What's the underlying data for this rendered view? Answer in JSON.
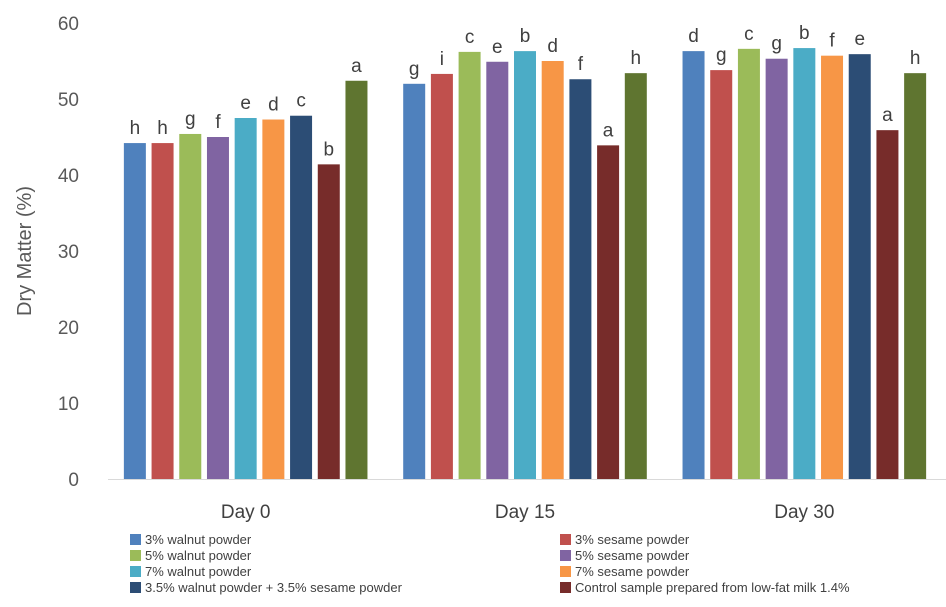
{
  "chart_data": {
    "type": "bar",
    "title": "",
    "xlabel": "",
    "ylabel": "Dry Matter (%)",
    "ylim": [
      0,
      60
    ],
    "yticks": [
      0,
      10,
      20,
      30,
      40,
      50,
      60
    ],
    "grid": false,
    "legend_position": "bottom",
    "categories": [
      "Day 0",
      "Day 15",
      "Day 30"
    ],
    "series": [
      {
        "name": "3% walnut powder",
        "color": "#4F81BD",
        "values": [
          44.2,
          52.0,
          56.3
        ],
        "labels": [
          "h",
          "g",
          "d"
        ]
      },
      {
        "name": "3% sesame powder",
        "color": "#C0504D",
        "values": [
          44.2,
          53.3,
          53.8
        ],
        "labels": [
          "h",
          "i",
          "g"
        ]
      },
      {
        "name": "5% walnut powder",
        "color": "#9BBB59",
        "values": [
          45.4,
          56.2,
          56.6
        ],
        "labels": [
          "g",
          "c",
          "c"
        ]
      },
      {
        "name": "5% sesame powder",
        "color": "#8064A2",
        "values": [
          45.0,
          54.9,
          55.3
        ],
        "labels": [
          "f",
          "e",
          "g"
        ]
      },
      {
        "name": "7% walnut powder",
        "color": "#4BACC6",
        "values": [
          47.5,
          56.3,
          56.7
        ],
        "labels": [
          "e",
          "b",
          "b"
        ]
      },
      {
        "name": "7% sesame powder",
        "color": "#F79646",
        "values": [
          47.3,
          55.0,
          55.7
        ],
        "labels": [
          "d",
          "d",
          "f"
        ]
      },
      {
        "name": "3.5% walnut powder + 3.5% sesame powder",
        "color": "#2C4D75",
        "values": [
          47.8,
          52.6,
          55.9
        ],
        "labels": [
          "c",
          "f",
          "e"
        ]
      },
      {
        "name": "Control sample prepared from low-fat milk 1.4%",
        "color": "#772C2A",
        "values": [
          41.4,
          43.9,
          45.9
        ],
        "labels": [
          "b",
          "a",
          "a"
        ]
      },
      {
        "name": "",
        "color": "#5F7530",
        "values": [
          52.4,
          53.4,
          53.4
        ],
        "labels": [
          "a",
          "h",
          "h"
        ]
      }
    ]
  }
}
